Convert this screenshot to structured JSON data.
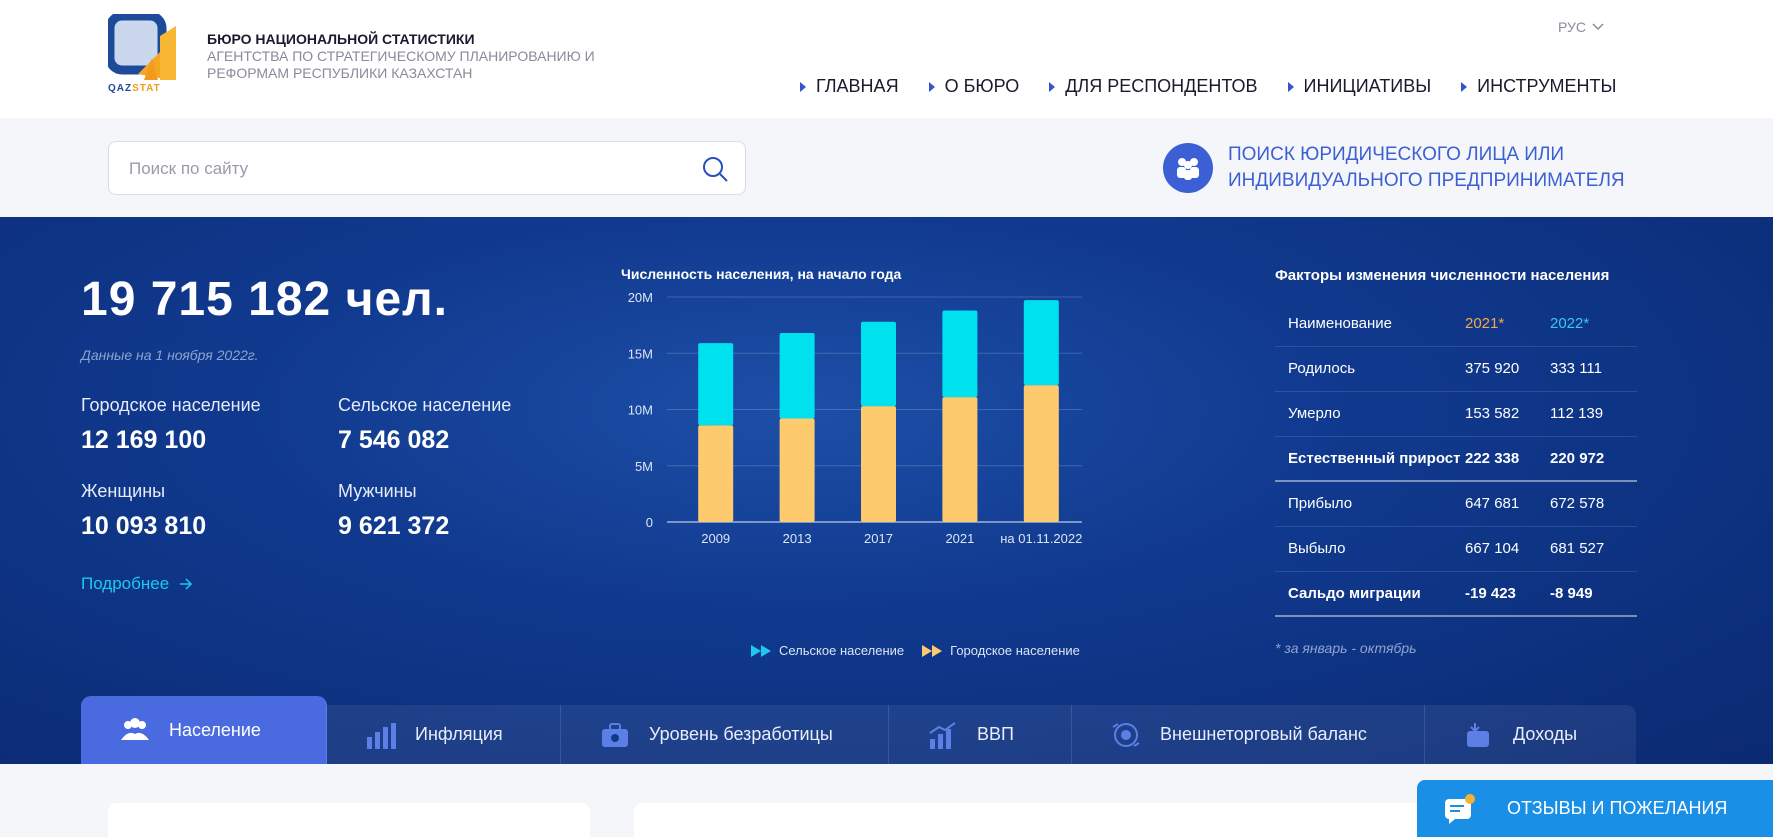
{
  "header": {
    "logo_text_a": "QAZ",
    "logo_text_b": "STAT",
    "org_title": "БЮРО НАЦИОНАЛЬНОЙ СТАТИСТИКИ",
    "org_subtitle": "АГЕНТСТВА ПО СТРАТЕГИЧЕСКОМУ ПЛАНИРОВАНИЮ И РЕФОРМАМ РЕСПУБЛИКИ КАЗАХСТАН",
    "language": "РУС",
    "nav": [
      "ГЛАВНАЯ",
      "О БЮРО",
      "ДЛЯ РЕСПОНДЕНТОВ",
      "ИНИЦИАТИВЫ",
      "ИНСТРУМЕНТЫ"
    ]
  },
  "search": {
    "placeholder": "Поиск по сайту",
    "legal_search": "ПОИСК ЮРИДИЧЕСКОГО ЛИЦА ИЛИ ИНДИВИДУАЛЬНОГО ПРЕДПРИНИМАТЕЛЯ"
  },
  "hero": {
    "population": "19 715 182 чел.",
    "date_note": "Данные на 1 ноября 2022г.",
    "urban_label": "Городское население",
    "urban_value": "12 169 100",
    "rural_label": "Сельское население",
    "rural_value": "7 546 082",
    "women_label": "Женщины",
    "women_value": "10 093 810",
    "men_label": "Мужчины",
    "men_value": "9 621 372",
    "more_link": "Подробнее"
  },
  "chart_data": {
    "type": "bar",
    "stacked": true,
    "title": "Численность населения, на начало года",
    "categories": [
      "2009",
      "2013",
      "2017",
      "2021",
      "на 01.11.2022"
    ],
    "series": [
      {
        "name": "Городское население",
        "color": "#fdcb6e",
        "values": [
          8.6,
          9.2,
          10.3,
          11.1,
          12.17
        ]
      },
      {
        "name": "Сельское население",
        "color": "#00e1f0",
        "values": [
          7.3,
          7.6,
          7.5,
          7.7,
          7.55
        ]
      }
    ],
    "y_ticks": [
      "0",
      "5M",
      "10M",
      "15M",
      "20M"
    ],
    "ylim": [
      0,
      20
    ],
    "legend": [
      "Сельское население",
      "Городское население"
    ]
  },
  "factors": {
    "title": "Факторы изменения численности населения",
    "header": {
      "name": "Наименование",
      "y1": "2021*",
      "y2": "2022*"
    },
    "rows": [
      {
        "name": "Родилось",
        "y1": "375 920",
        "y2": "333 111"
      },
      {
        "name": "Умерло",
        "y1": "153 582",
        "y2": "112 139"
      },
      {
        "name": "Естественный прирост",
        "y1": "222 338",
        "y2": "220 972"
      },
      {
        "name": "Прибыло",
        "y1": "647 681",
        "y2": "672 578"
      },
      {
        "name": "Выбыло",
        "y1": "667 104",
        "y2": "681 527"
      },
      {
        "name": "Сальдо миграции",
        "y1": "-19 423",
        "y2": "-8 949"
      }
    ],
    "note": "* за январь - октябрь"
  },
  "tabs": [
    "Население",
    "Инфляция",
    "Уровень безработицы",
    "ВВП",
    "Внешнеторговый баланс",
    "Доходы"
  ],
  "feedback": "ОТЗЫВЫ И ПОЖЕЛАНИЯ",
  "colors": {
    "accent": "#3d5fd6",
    "hero_bg": "#10398e",
    "urban": "#fdcb6e",
    "rural": "#00e1f0",
    "link": "#1ec8f0"
  }
}
